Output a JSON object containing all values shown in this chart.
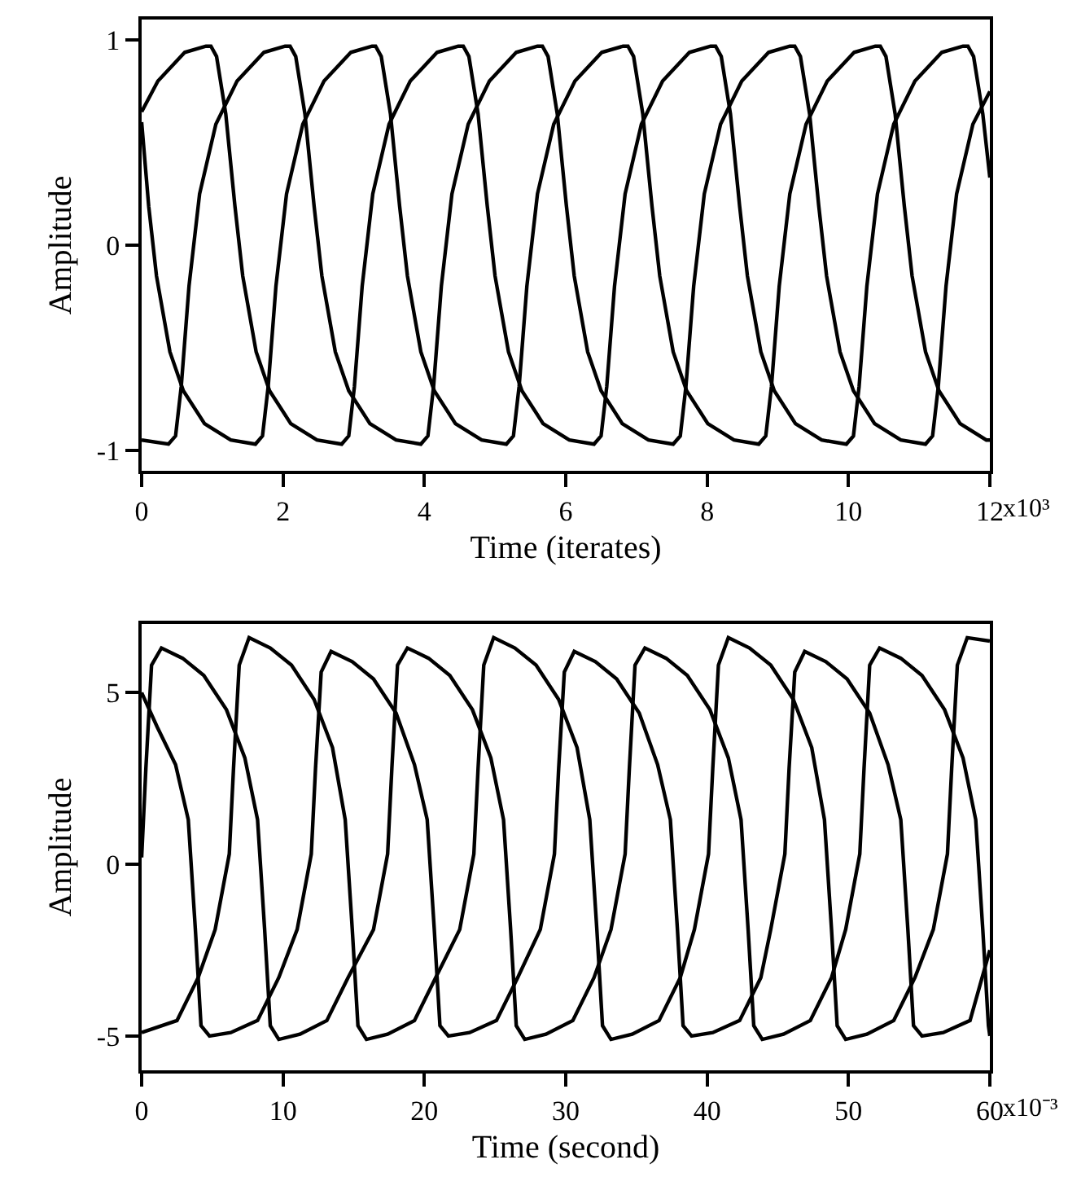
{
  "chart_data": [
    {
      "type": "line",
      "xlabel": "Time (iterates)",
      "ylabel": "Amplitude",
      "xlim": [
        0,
        12
      ],
      "ylim": [
        -1.1,
        1.1
      ],
      "xticks": [
        0,
        2,
        4,
        6,
        8,
        10,
        12
      ],
      "yticks": [
        -1,
        0,
        1
      ],
      "grid": false,
      "annotations": [
        "x10³"
      ],
      "series": [
        {
          "color": "#000000",
          "x": [
            0,
            0.23,
            0.61,
            0.91,
            0.98,
            1.06,
            1.19,
            1.32,
            1.43,
            1.62,
            1.81,
            2.11,
            2.48,
            2.83,
            2.93,
            3.01,
            3.12,
            3.27,
            3.5,
            3.8,
            4.18,
            4.48,
            4.55,
            4.63,
            4.76,
            4.89,
            5,
            5.19,
            5.38,
            5.68,
            6.05,
            6.4,
            6.5,
            6.58,
            6.69,
            6.84,
            7.07,
            7.37,
            7.75,
            8.05,
            8.12,
            8.2,
            8.33,
            8.46,
            8.57,
            8.76,
            8.95,
            9.25,
            9.62,
            9.97,
            10.07,
            10.15,
            10.26,
            10.41,
            10.64,
            10.94,
            11.32,
            11.62,
            11.69,
            11.77,
            11.9,
            12
          ],
          "values": [
            0.65,
            0.8,
            0.94,
            0.97,
            0.97,
            0.92,
            0.64,
            0.19,
            -0.15,
            -0.52,
            -0.71,
            -0.87,
            -0.95,
            -0.97,
            -0.93,
            -0.69,
            -0.2,
            0.25,
            0.59,
            0.8,
            0.94,
            0.97,
            0.97,
            0.92,
            0.64,
            0.19,
            -0.15,
            -0.52,
            -0.71,
            -0.87,
            -0.95,
            -0.97,
            -0.93,
            -0.69,
            -0.2,
            0.25,
            0.59,
            0.8,
            0.94,
            0.97,
            0.97,
            0.92,
            0.64,
            0.19,
            -0.15,
            -0.52,
            -0.71,
            -0.87,
            -0.95,
            -0.97,
            -0.93,
            -0.69,
            -0.2,
            0.25,
            0.59,
            0.8,
            0.94,
            0.97,
            0.97,
            0.92,
            0.64,
            0.33
          ]
        },
        {
          "color": "#000000",
          "x": [
            0,
            0.1,
            0.21,
            0.4,
            0.59,
            0.89,
            1.26,
            1.61,
            1.71,
            1.79,
            1.9,
            2.05,
            2.28,
            2.58,
            2.96,
            3.26,
            3.31,
            3.39,
            3.52,
            3.65,
            3.76,
            3.95,
            4.14,
            4.44,
            4.81,
            5.16,
            5.26,
            5.34,
            5.45,
            5.6,
            5.83,
            6.13,
            6.51,
            6.81,
            6.88,
            6.96,
            7.09,
            7.22,
            7.33,
            7.52,
            7.71,
            8.01,
            8.38,
            8.73,
            8.83,
            8.91,
            9.02,
            9.17,
            9.4,
            9.7,
            10.08,
            10.38,
            10.45,
            10.53,
            10.66,
            10.79,
            10.9,
            11.09,
            11.28,
            11.58,
            11.95,
            12
          ],
          "values": [
            0.6,
            0.19,
            -0.15,
            -0.52,
            -0.71,
            -0.87,
            -0.95,
            -0.97,
            -0.93,
            -0.69,
            -0.2,
            0.25,
            0.59,
            0.8,
            0.94,
            0.97,
            0.97,
            0.92,
            0.64,
            0.19,
            -0.15,
            -0.52,
            -0.71,
            -0.87,
            -0.95,
            -0.97,
            -0.93,
            -0.69,
            -0.2,
            0.25,
            0.59,
            0.8,
            0.94,
            0.97,
            0.97,
            0.92,
            0.64,
            0.19,
            -0.15,
            -0.52,
            -0.71,
            -0.87,
            -0.95,
            -0.97,
            -0.93,
            -0.69,
            -0.2,
            0.25,
            0.59,
            0.8,
            0.94,
            0.97,
            0.97,
            0.92,
            0.64,
            0.19,
            -0.15,
            -0.52,
            -0.71,
            -0.87,
            -0.95,
            -0.95
          ]
        },
        {
          "color": "#000000",
          "x": [
            0,
            0.38,
            0.48,
            0.56,
            0.67,
            0.82,
            1.05,
            1.35,
            1.73,
            2.03,
            2.1,
            2.18,
            2.31,
            2.44,
            2.55,
            2.74,
            2.93,
            3.23,
            3.6,
            3.95,
            4.05,
            4.13,
            4.24,
            4.39,
            4.62,
            4.92,
            5.3,
            5.6,
            5.67,
            5.75,
            5.88,
            6.01,
            6.12,
            6.31,
            6.5,
            6.8,
            7.17,
            7.52,
            7.62,
            7.7,
            7.81,
            7.96,
            8.19,
            8.49,
            8.87,
            9.17,
            9.24,
            9.32,
            9.45,
            9.58,
            9.69,
            9.88,
            10.07,
            10.37,
            10.74,
            11.09,
            11.19,
            11.27,
            11.38,
            11.53,
            11.76,
            12
          ],
          "values": [
            -0.95,
            -0.97,
            -0.93,
            -0.69,
            -0.2,
            0.25,
            0.59,
            0.8,
            0.94,
            0.97,
            0.97,
            0.92,
            0.64,
            0.19,
            -0.15,
            -0.52,
            -0.71,
            -0.87,
            -0.95,
            -0.97,
            -0.93,
            -0.69,
            -0.2,
            0.25,
            0.59,
            0.8,
            0.94,
            0.97,
            0.97,
            0.92,
            0.64,
            0.19,
            -0.15,
            -0.52,
            -0.71,
            -0.87,
            -0.95,
            -0.97,
            -0.93,
            -0.69,
            -0.2,
            0.25,
            0.59,
            0.8,
            0.94,
            0.97,
            0.97,
            0.92,
            0.64,
            0.19,
            -0.15,
            -0.52,
            -0.71,
            -0.87,
            -0.95,
            -0.97,
            -0.93,
            -0.69,
            -0.2,
            0.25,
            0.59,
            0.75
          ]
        }
      ]
    },
    {
      "type": "line",
      "xlabel": "Time (second)",
      "ylabel": "Amplitude",
      "xlim": [
        0,
        60
      ],
      "ylim": [
        -6,
        7
      ],
      "xticks": [
        0,
        10,
        20,
        30,
        40,
        50,
        60
      ],
      "yticks": [
        -5,
        0,
        5
      ],
      "grid": false,
      "annotations": [
        "x10⁻³"
      ],
      "series": [
        {
          "color": "#000000",
          "x": [
            0,
            0.3,
            0.7,
            1.4,
            2.9,
            4.4,
            6,
            7.3,
            8.2,
            8.7,
            9.1,
            9.7,
            11.2,
            13.1,
            14.6,
            16.4,
            17.4,
            17.7,
            18.1,
            18.8,
            20.3,
            21.8,
            23.4,
            24.7,
            25.6,
            26.1,
            26.5,
            27.1,
            28.6,
            30.5,
            32,
            33.2,
            34.2,
            34.5,
            34.9,
            35.6,
            37.1,
            38.6,
            40.2,
            41.5,
            42.4,
            42.9,
            43.3,
            43.9,
            45.4,
            47.3,
            48.8,
            49.8,
            50.8,
            51.1,
            51.5,
            52.2,
            53.7,
            55.2,
            56.8,
            58.1,
            59,
            59.5,
            59.9,
            60
          ],
          "values": [
            0.2,
            2.8,
            5.8,
            6.3,
            6,
            5.5,
            4.5,
            3.1,
            1.3,
            -1.9,
            -4.7,
            -5.1,
            -4.95,
            -4.55,
            -3.3,
            -1.9,
            0.3,
            2.8,
            5.8,
            6.3,
            6,
            5.5,
            4.5,
            3.1,
            1.3,
            -1.9,
            -4.7,
            -5.1,
            -4.95,
            -4.55,
            -3.3,
            -1.9,
            0.3,
            2.8,
            5.8,
            6.3,
            6,
            5.5,
            4.5,
            3.1,
            1.3,
            -1.9,
            -4.7,
            -5.1,
            -4.95,
            -4.55,
            -3.3,
            -1.9,
            0.3,
            2.8,
            5.8,
            6.3,
            6,
            5.5,
            4.5,
            3.1,
            1.3,
            -1.9,
            -4.7,
            -5
          ]
        },
        {
          "color": "#000000",
          "x": [
            0,
            2.5,
            4,
            5.2,
            6.2,
            6.5,
            6.9,
            7.6,
            9.1,
            10.6,
            12.2,
            13.5,
            14.4,
            14.9,
            15.3,
            15.9,
            17.4,
            19.3,
            20.8,
            22.5,
            23.5,
            23.8,
            24.2,
            24.9,
            26.4,
            27.9,
            29.5,
            30.8,
            31.7,
            32.2,
            32.6,
            33.2,
            34.7,
            36.6,
            38.1,
            39.1,
            40.1,
            40.4,
            40.8,
            41.5,
            43,
            44.5,
            46.1,
            47.4,
            48.3,
            48.8,
            49.2,
            49.8,
            51.3,
            53.2,
            54.7,
            56,
            57,
            57.3,
            57.7,
            58.4,
            60
          ],
          "values": [
            -4.9,
            -4.55,
            -3.3,
            -1.9,
            0.3,
            2.8,
            5.8,
            6.6,
            6.3,
            5.8,
            4.8,
            3.4,
            1.3,
            -1.9,
            -4.7,
            -5.1,
            -4.95,
            -4.55,
            -3.3,
            -1.9,
            0.3,
            2.8,
            5.8,
            6.6,
            6.3,
            5.8,
            4.8,
            3.4,
            1.3,
            -1.9,
            -4.7,
            -5.1,
            -4.95,
            -4.55,
            -3.3,
            -1.9,
            0.3,
            2.8,
            5.8,
            6.6,
            6.3,
            5.8,
            4.8,
            3.4,
            1.3,
            -1.9,
            -4.7,
            -5.1,
            -4.95,
            -4.55,
            -3.3,
            -1.9,
            0.3,
            2.8,
            5.8,
            6.6,
            6.5
          ]
        },
        {
          "color": "#000000",
          "x": [
            0,
            1.1,
            2.4,
            3.3,
            3.8,
            4.2,
            4.8,
            6.3,
            8.2,
            9.7,
            11,
            12,
            12.3,
            12.7,
            13.4,
            14.9,
            16.4,
            18,
            19.3,
            20.2,
            20.7,
            21.1,
            21.7,
            23.2,
            25.1,
            26.6,
            28.2,
            29.2,
            29.5,
            29.9,
            30.6,
            32.1,
            33.6,
            35.2,
            36.5,
            37.4,
            37.9,
            38.3,
            38.9,
            40.4,
            42.3,
            43.8,
            44.5,
            45.5,
            45.8,
            46.2,
            46.9,
            48.4,
            49.9,
            51.5,
            52.8,
            53.7,
            54.2,
            54.6,
            55.2,
            56.7,
            58.6,
            60
          ],
          "values": [
            5,
            4,
            2.9,
            1.3,
            -1.9,
            -4.7,
            -5,
            -4.9,
            -4.55,
            -3.3,
            -1.9,
            0.3,
            2.8,
            5.6,
            6.2,
            5.9,
            5.4,
            4.4,
            2.9,
            1.3,
            -1.9,
            -4.7,
            -5,
            -4.9,
            -4.55,
            -3.3,
            -1.9,
            0.3,
            2.8,
            5.6,
            6.2,
            5.9,
            5.4,
            4.4,
            2.9,
            1.3,
            -1.9,
            -4.7,
            -5,
            -4.9,
            -4.55,
            -3.3,
            -1.9,
            0.3,
            2.8,
            5.6,
            6.2,
            5.9,
            5.4,
            4.4,
            2.9,
            1.3,
            -1.9,
            -4.7,
            -5,
            -4.9,
            -4.55,
            -2.5
          ]
        }
      ]
    }
  ]
}
